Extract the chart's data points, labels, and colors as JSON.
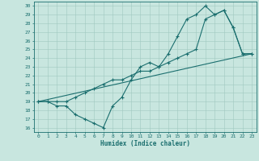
{
  "xlabel": "Humidex (Indice chaleur)",
  "background_color": "#c8e6df",
  "grid_color": "#a0c8c0",
  "line_color": "#1a6e6e",
  "xlim": [
    -0.5,
    23.5
  ],
  "ylim": [
    15.5,
    30.5
  ],
  "yticks": [
    16,
    17,
    18,
    19,
    20,
    21,
    22,
    23,
    24,
    25,
    26,
    27,
    28,
    29,
    30
  ],
  "xticks": [
    0,
    1,
    2,
    3,
    4,
    5,
    6,
    7,
    8,
    9,
    10,
    11,
    12,
    13,
    14,
    15,
    16,
    17,
    18,
    19,
    20,
    21,
    22,
    23
  ],
  "line1_x": [
    0,
    1,
    2,
    3,
    4,
    5,
    6,
    7,
    8,
    9,
    10,
    11,
    12,
    13,
    14,
    15,
    16,
    17,
    18,
    19,
    20,
    21,
    22,
    23
  ],
  "line1_y": [
    19.0,
    19.0,
    18.5,
    18.5,
    17.5,
    17.0,
    16.5,
    16.0,
    18.5,
    19.5,
    21.5,
    23.0,
    23.5,
    23.0,
    24.5,
    26.5,
    28.5,
    29.0,
    30.0,
    29.0,
    29.5,
    27.5,
    24.5,
    24.5
  ],
  "line2_x": [
    0,
    1,
    2,
    3,
    4,
    5,
    6,
    7,
    8,
    9,
    10,
    11,
    12,
    13,
    14,
    15,
    16,
    17,
    18,
    19,
    20,
    21,
    22,
    23
  ],
  "line2_y": [
    19.0,
    19.0,
    19.0,
    19.0,
    19.5,
    20.0,
    20.5,
    21.0,
    21.5,
    21.5,
    22.0,
    22.5,
    22.5,
    23.0,
    23.5,
    24.0,
    24.5,
    25.0,
    28.5,
    29.0,
    29.5,
    27.5,
    24.5,
    24.5
  ],
  "line3_x": [
    0,
    23
  ],
  "line3_y": [
    19.0,
    24.5
  ],
  "marker": "+",
  "markersize": 3,
  "linewidth": 0.8,
  "tick_fontsize": 4.5,
  "xlabel_fontsize": 5.5
}
